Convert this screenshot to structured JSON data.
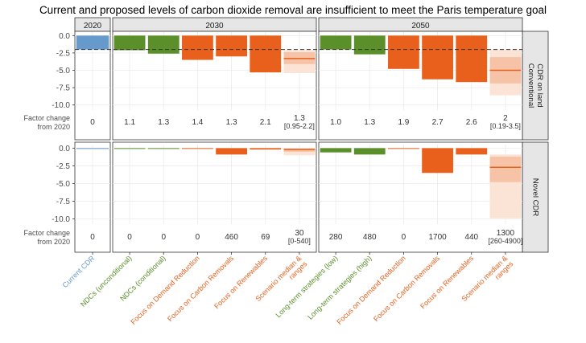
{
  "title": "Current and proposed levels of carbon dioxide removal are insufficient to meet the Paris temperature goal",
  "facets": {
    "cols": [
      "2020",
      "2030",
      "2050"
    ],
    "rows": [
      "Conventional CDR on land",
      "Novel CDR"
    ]
  },
  "factor_label": [
    "Factor change",
    "from 2020"
  ],
  "y_ticks": [
    "0.0",
    "-2.5",
    "-5.0",
    "-7.5",
    "-10.0"
  ],
  "x_labels": {
    "2020": [
      "Current CDR"
    ],
    "2030": [
      "NDCs (unconditional)",
      "NDCs (conditional)",
      "Focus on Demand Reduction",
      "Focus on Carbon Removals",
      "Focus on Renewables",
      "Scenario median & ranges"
    ],
    "2050": [
      "Long-term strategies (low)",
      "Long-term strategies (high)",
      "Focus on Demand Reduction",
      "Focus on Carbon Removals",
      "Focus on Renewables",
      "Scenario median & ranges"
    ]
  },
  "colors": {
    "current": "#6699cc",
    "pledge": "#5a8f29",
    "scenario": "#e8601c",
    "range_outer": "#fbe3d5",
    "range_inner": "#f6c3a6",
    "panel_bg": "#ffffff",
    "strip_bg": "#e6e6e6",
    "grid": "#ebebeb",
    "dashed_line": "#333333"
  },
  "chart_data": {
    "type": "bar",
    "ylim": [
      -10.5,
      0.5
    ],
    "reference_line": -2.0,
    "panels": [
      {
        "row": "Conventional CDR on land",
        "col": "2020",
        "values": [
          -2.0
        ],
        "factor_change": [
          "0"
        ]
      },
      {
        "row": "Conventional CDR on land",
        "col": "2030",
        "values": [
          -2.1,
          -2.6,
          -3.5,
          -3.0,
          -5.3
        ],
        "scenario_range": {
          "median": -3.3,
          "inner": [
            -2.4,
            -4.1
          ],
          "outer": [
            -2.1,
            -5.4
          ]
        },
        "factor_change": [
          "1.1",
          "1.3",
          "1.4",
          "1.3",
          "2.1",
          "1.3\n[0.95-2.2]"
        ]
      },
      {
        "row": "Conventional CDR on land",
        "col": "2050",
        "values": [
          -2.0,
          -2.7,
          -4.8,
          -6.3,
          -6.7
        ],
        "scenario_range": {
          "median": -5.0,
          "inner": [
            -3.1,
            -6.9
          ],
          "outer": [
            -2.0,
            -8.6
          ]
        },
        "factor_change": [
          "1.0",
          "1.3",
          "1.9",
          "2.7",
          "2.6",
          "2\n[0.19-3.5]"
        ]
      },
      {
        "row": "Novel CDR",
        "col": "2020",
        "values": [
          -0.05
        ],
        "factor_change": [
          "0"
        ]
      },
      {
        "row": "Novel CDR",
        "col": "2030",
        "values": [
          0,
          0,
          0,
          -0.9,
          -0.2
        ],
        "scenario_range": {
          "median": -0.2,
          "inner": [
            -0.05,
            -0.5
          ],
          "outer": [
            0,
            -1.0
          ]
        },
        "factor_change": [
          "0",
          "0",
          "0",
          "460",
          "69",
          "30\n[0-540]"
        ]
      },
      {
        "row": "Novel CDR",
        "col": "2050",
        "values": [
          -0.6,
          -0.9,
          0,
          -3.5,
          -0.9
        ],
        "scenario_range": {
          "median": -2.7,
          "inner": [
            -1.2,
            -4.8
          ],
          "outer": [
            -0.9,
            -9.9
          ]
        },
        "factor_change": [
          "280",
          "480",
          "0",
          "1700",
          "440",
          "1300\n[260-4900]"
        ]
      }
    ]
  }
}
